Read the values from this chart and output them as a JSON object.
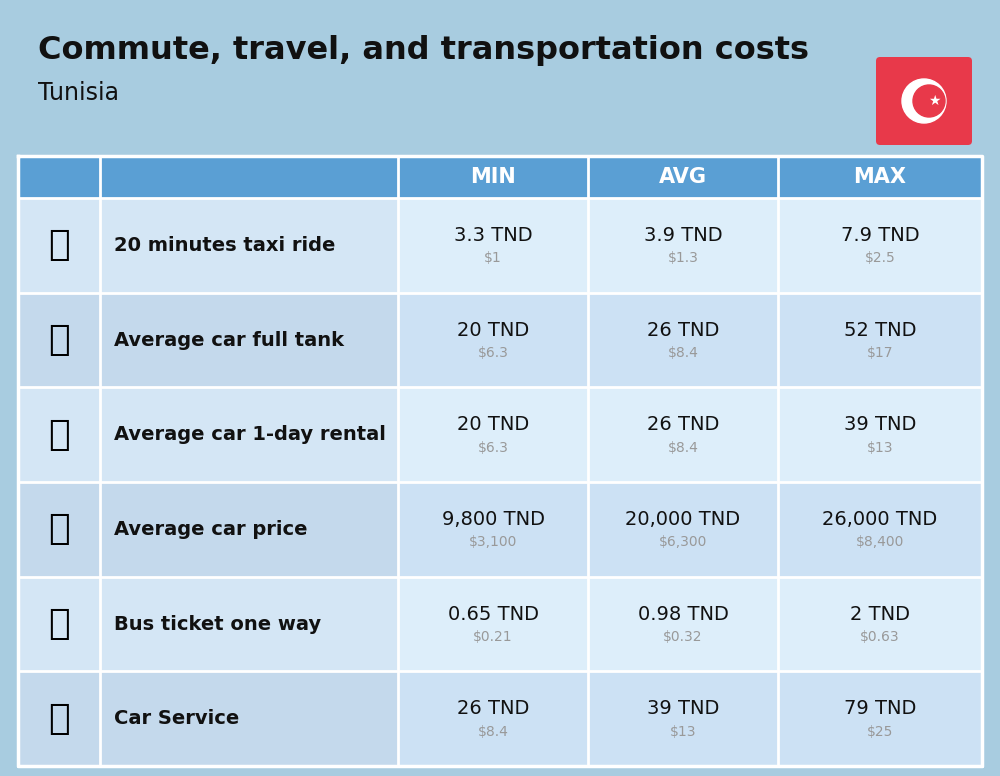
{
  "title": "Commute, travel, and transportation costs",
  "subtitle": "Tunisia",
  "background_color": "#a8cce0",
  "header_color": "#5a9fd4",
  "header_text_color": "#ffffff",
  "col_headers": [
    "MIN",
    "AVG",
    "MAX"
  ],
  "rows": [
    {
      "label": "20 minutes taxi ride",
      "emoji_text": "🚕",
      "min_tnd": "3.3 TND",
      "min_usd": "$1",
      "avg_tnd": "3.9 TND",
      "avg_usd": "$1.3",
      "max_tnd": "7.9 TND",
      "max_usd": "$2.5"
    },
    {
      "label": "Average car full tank",
      "emoji_text": "⛽",
      "min_tnd": "20 TND",
      "min_usd": "$6.3",
      "avg_tnd": "26 TND",
      "avg_usd": "$8.4",
      "max_tnd": "52 TND",
      "max_usd": "$17"
    },
    {
      "label": "Average car 1-day rental",
      "emoji_text": "🚙",
      "min_tnd": "20 TND",
      "min_usd": "$6.3",
      "avg_tnd": "26 TND",
      "avg_usd": "$8.4",
      "max_tnd": "39 TND",
      "max_usd": "$13"
    },
    {
      "label": "Average car price",
      "emoji_text": "🚘",
      "min_tnd": "9,800 TND",
      "min_usd": "$3,100",
      "avg_tnd": "20,000 TND",
      "avg_usd": "$6,300",
      "max_tnd": "26,000 TND",
      "max_usd": "$8,400"
    },
    {
      "label": "Bus ticket one way",
      "emoji_text": "🚌",
      "min_tnd": "0.65 TND",
      "min_usd": "$0.21",
      "avg_tnd": "0.98 TND",
      "avg_usd": "$0.32",
      "max_tnd": "2 TND",
      "max_usd": "$0.63"
    },
    {
      "label": "Car Service",
      "emoji_text": "🔧",
      "min_tnd": "26 TND",
      "min_usd": "$8.4",
      "avg_tnd": "39 TND",
      "avg_usd": "$13",
      "max_tnd": "79 TND",
      "max_usd": "$25"
    }
  ],
  "row_bg_even": "#d4e6f5",
  "row_bg_odd": "#c4d9ec",
  "data_bg_even": "#ddeefa",
  "data_bg_odd": "#cce1f4",
  "flag_bg": "#e8394a",
  "white": "#ffffff",
  "text_dark": "#111111",
  "text_gray": "#999999",
  "title_fontsize": 23,
  "subtitle_fontsize": 17,
  "header_fontsize": 15,
  "label_fontsize": 14,
  "value_fontsize": 14,
  "sub_value_fontsize": 10,
  "emoji_fontsize": 26
}
